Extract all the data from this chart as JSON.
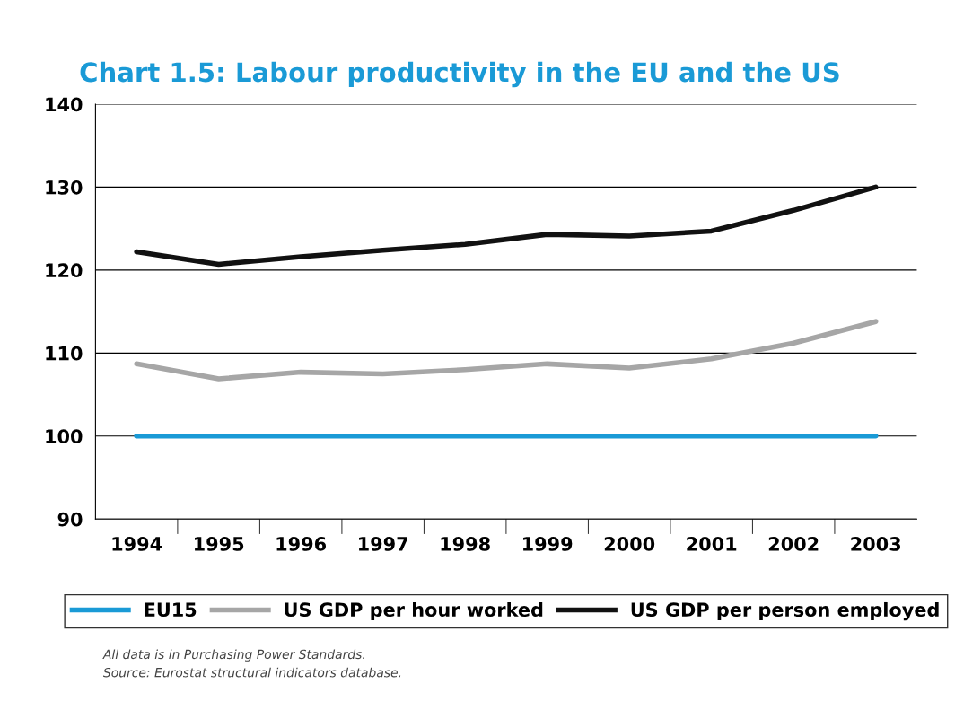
{
  "chart_data": {
    "type": "line",
    "title": "Chart 1.5: Labour productivity in the EU and the US",
    "categories": [
      "1994",
      "1995",
      "1996",
      "1997",
      "1998",
      "1999",
      "2000",
      "2001",
      "2002",
      "2003"
    ],
    "series": [
      {
        "name": "EU15",
        "color": "#1a9ad6",
        "values": [
          100,
          100,
          100,
          100,
          100,
          100,
          100,
          100,
          100,
          100
        ]
      },
      {
        "name": "US GDP per hour worked",
        "color": "#a6a6a6",
        "values": [
          108.7,
          106.9,
          107.7,
          107.5,
          108.0,
          108.7,
          108.2,
          109.3,
          111.2,
          113.8
        ]
      },
      {
        "name": "US GDP per person employed",
        "color": "#111111",
        "values": [
          122.2,
          120.7,
          121.6,
          122.4,
          123.1,
          124.3,
          124.1,
          124.7,
          127.2,
          130.0
        ]
      }
    ],
    "ylim": [
      90,
      140
    ],
    "yticks": [
      90,
      100,
      110,
      120,
      130,
      140
    ],
    "grid": "y",
    "legend": "bottom",
    "marker": "none",
    "line_style": "solid",
    "annotations": [
      "All data is in Purchasing Power Standards.",
      "Source: Eurostat structural indicators database."
    ]
  }
}
